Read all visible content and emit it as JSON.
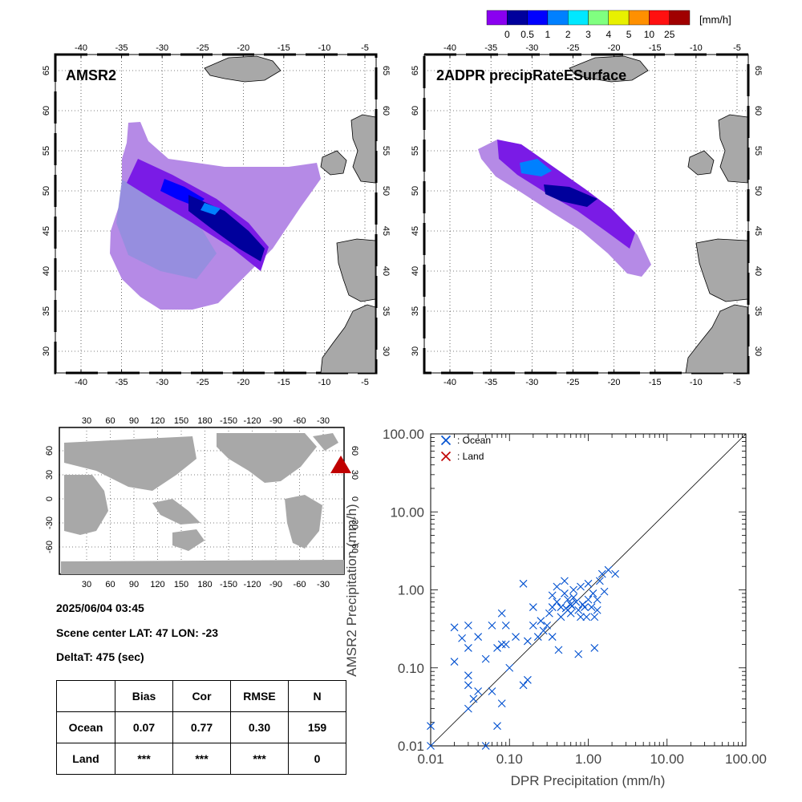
{
  "colorbar": {
    "unit": "[mm/h]",
    "labels": [
      "0",
      "0.5",
      "1",
      "2",
      "3",
      "4",
      "5",
      "10",
      "25"
    ],
    "colors": [
      "#8a00f0",
      "#00009c",
      "#0000ff",
      "#0080ff",
      "#00e8ff",
      "#80ff80",
      "#e8f000",
      "#ff9000",
      "#ff1010",
      "#a00000"
    ]
  },
  "map_left": {
    "title": "AMSR2",
    "lon_labels": [
      "-40",
      "-35",
      "-30",
      "-25",
      "-20",
      "-15",
      "-10",
      "-5"
    ],
    "lat_labels": [
      "65",
      "60",
      "55",
      "50",
      "45",
      "40",
      "35",
      "30"
    ]
  },
  "map_right": {
    "title": "2ADPR precipRateESurface",
    "lon_labels": [
      "-40",
      "-35",
      "-30",
      "-25",
      "-20",
      "-15",
      "-10",
      "-5"
    ],
    "lat_labels": [
      "65",
      "60",
      "55",
      "50",
      "45",
      "40",
      "35",
      "30"
    ]
  },
  "world_map": {
    "top_lon_labels": [
      "30",
      "60",
      "90",
      "120",
      "150",
      "180",
      "-150",
      "-120",
      "-90",
      "-60",
      "-30"
    ],
    "bottom_lon_labels": [
      "30",
      "60",
      "90",
      "120",
      "150",
      "180",
      "-150",
      "-120",
      "-90",
      "-60",
      "-30"
    ],
    "lat_labels": [
      "60",
      "30",
      "0",
      "-30",
      "-60"
    ],
    "marker_color": "#c00000"
  },
  "scene": {
    "datetime": "2025/06/04 03:45",
    "center": "Scene center LAT: 47   LON: -23",
    "delta": "DeltaT:  475 (sec)"
  },
  "stats": {
    "headers": [
      "",
      "Bias",
      "Cor",
      "RMSE",
      "N"
    ],
    "rows": [
      {
        "label": "Ocean",
        "bias": "0.07",
        "cor": "0.77",
        "rmse": "0.30",
        "n": "159"
      },
      {
        "label": "Land",
        "bias": "***",
        "cor": "***",
        "rmse": "***",
        "n": "0"
      }
    ]
  },
  "chart_data": {
    "type": "scatter",
    "xlabel": "DPR Precipitation (mm/h)",
    "ylabel": "AMSR2 Precipitation (mm/h)",
    "xscale": "log",
    "yscale": "log",
    "xlim": [
      0.01,
      100
    ],
    "ylim": [
      0.01,
      100
    ],
    "x_tick_labels": [
      "0.01",
      "0.10",
      "1.00",
      "10.00",
      "100.00"
    ],
    "y_tick_labels": [
      "0.01",
      "0.10",
      "1.00",
      "10.00",
      "100.00"
    ],
    "legend": [
      {
        "label": ": Ocean",
        "color": "#0050d0"
      },
      {
        "label": ": Land",
        "color": "#c00000"
      }
    ],
    "legend_position": "top-left",
    "reference_line": "y=x",
    "series": [
      {
        "name": "Ocean",
        "color": "#0050d0",
        "points": [
          [
            0.01,
            0.018
          ],
          [
            0.01,
            0.01
          ],
          [
            0.02,
            0.12
          ],
          [
            0.02,
            0.33
          ],
          [
            0.025,
            0.24
          ],
          [
            0.03,
            0.35
          ],
          [
            0.03,
            0.18
          ],
          [
            0.03,
            0.08
          ],
          [
            0.03,
            0.06
          ],
          [
            0.03,
            0.03
          ],
          [
            0.035,
            0.04
          ],
          [
            0.04,
            0.05
          ],
          [
            0.04,
            0.25
          ],
          [
            0.05,
            0.01
          ],
          [
            0.05,
            0.13
          ],
          [
            0.06,
            0.35
          ],
          [
            0.06,
            0.05
          ],
          [
            0.07,
            0.018
          ],
          [
            0.07,
            0.18
          ],
          [
            0.08,
            0.2
          ],
          [
            0.08,
            0.5
          ],
          [
            0.08,
            0.035
          ],
          [
            0.09,
            0.35
          ],
          [
            0.09,
            0.2
          ],
          [
            0.1,
            0.1
          ],
          [
            0.12,
            0.25
          ],
          [
            0.15,
            0.06
          ],
          [
            0.15,
            1.2
          ],
          [
            0.17,
            0.07
          ],
          [
            0.17,
            0.22
          ],
          [
            0.2,
            0.6
          ],
          [
            0.2,
            0.35
          ],
          [
            0.23,
            0.25
          ],
          [
            0.25,
            0.4
          ],
          [
            0.27,
            0.3
          ],
          [
            0.3,
            0.35
          ],
          [
            0.32,
            0.5
          ],
          [
            0.35,
            0.6
          ],
          [
            0.35,
            0.25
          ],
          [
            0.35,
            0.85
          ],
          [
            0.4,
            1.1
          ],
          [
            0.4,
            0.7
          ],
          [
            0.42,
            0.17
          ],
          [
            0.45,
            0.6
          ],
          [
            0.45,
            0.45
          ],
          [
            0.5,
            0.9
          ],
          [
            0.5,
            1.3
          ],
          [
            0.55,
            0.55
          ],
          [
            0.55,
            0.75
          ],
          [
            0.6,
            0.65
          ],
          [
            0.6,
            0.5
          ],
          [
            0.65,
            0.8
          ],
          [
            0.65,
            1.0
          ],
          [
            0.7,
            0.7
          ],
          [
            0.75,
            0.55
          ],
          [
            0.75,
            0.15
          ],
          [
            0.8,
            1.1
          ],
          [
            0.8,
            0.45
          ],
          [
            0.85,
            0.65
          ],
          [
            0.9,
            0.6
          ],
          [
            0.95,
            0.45
          ],
          [
            1.0,
            1.2
          ],
          [
            1.1,
            0.6
          ],
          [
            1.2,
            0.45
          ],
          [
            1.2,
            0.18
          ],
          [
            1.3,
            0.75
          ],
          [
            1.3,
            0.55
          ],
          [
            1.4,
            1.3
          ],
          [
            1.5,
            1.6
          ],
          [
            1.6,
            0.95
          ],
          [
            1.8,
            1.8
          ],
          [
            2.2,
            1.6
          ],
          [
            1.0,
            0.75
          ],
          [
            1.15,
            0.9
          ],
          [
            0.62,
            0.62
          ],
          [
            0.52,
            0.58
          ]
        ]
      },
      {
        "name": "Land",
        "color": "#c00000",
        "points": []
      }
    ]
  }
}
